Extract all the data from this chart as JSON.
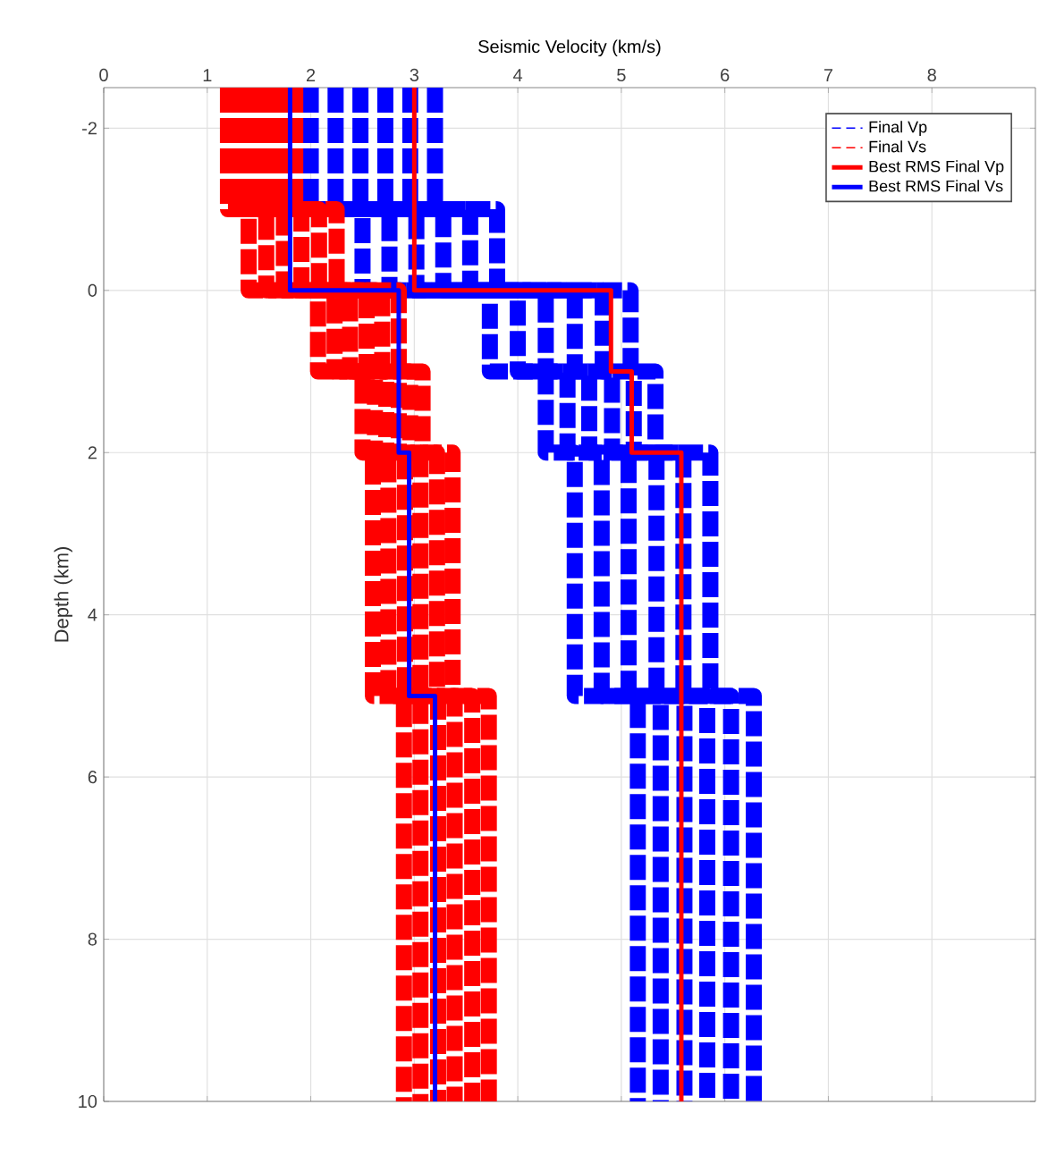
{
  "chart_data": {
    "type": "line",
    "xlabel": "Seismic Velocity (km/s)",
    "ylabel": "Depth (km)",
    "xlim": [
      0,
      9
    ],
    "xticks": [
      0,
      1,
      2,
      3,
      4,
      5,
      6,
      7,
      8
    ],
    "ylim": [
      10,
      -2.5
    ],
    "yticks": [
      -2,
      0,
      2,
      4,
      6,
      8,
      10
    ],
    "grid": true,
    "legend": "top right",
    "marker": "none",
    "series": [
      {
        "name": "Final Vp",
        "color": "#0000ff",
        "line_style": "dashed",
        "x": [
          2.0,
          2.0,
          2.5,
          2.5,
          3.73,
          3.73,
          4.27,
          4.27,
          4.55,
          4.55,
          5.16,
          5.16
        ],
        "values": [
          -2.5,
          -1,
          -1,
          0,
          0,
          1,
          1,
          2,
          2,
          5,
          5,
          10
        ]
      },
      {
        "color": "#0000ff",
        "line_style": "dashed",
        "x": [
          2.24,
          2.24,
          2.76,
          2.76,
          4.0,
          4.0,
          4.48,
          4.48,
          4.81,
          4.81,
          5.38,
          5.38
        ],
        "values": [
          -2.5,
          -1,
          -1,
          0,
          0,
          1,
          1,
          2,
          2,
          5,
          5,
          10
        ]
      },
      {
        "color": "#0000ff",
        "line_style": "dashed",
        "x": [
          2.48,
          2.48,
          3.02,
          3.02,
          4.27,
          4.27,
          4.69,
          4.69,
          5.07,
          5.07,
          5.61,
          5.61
        ],
        "values": [
          -2.5,
          -1,
          -1,
          0,
          0,
          1,
          1,
          2,
          2,
          5,
          5,
          10
        ]
      },
      {
        "color": "#0000ff",
        "line_style": "dashed",
        "x": [
          2.72,
          2.72,
          3.28,
          3.28,
          4.55,
          4.55,
          4.91,
          4.91,
          5.34,
          5.34,
          5.83,
          5.83
        ],
        "values": [
          -2.5,
          -1,
          -1,
          0,
          0,
          1,
          1,
          2,
          2,
          5,
          5,
          10
        ]
      },
      {
        "color": "#0000ff",
        "line_style": "dashed",
        "x": [
          2.96,
          2.96,
          3.54,
          3.54,
          4.82,
          4.82,
          5.12,
          5.12,
          5.6,
          5.6,
          6.06,
          6.06
        ],
        "values": [
          -2.5,
          -1,
          -1,
          0,
          0,
          1,
          1,
          2,
          2,
          5,
          5,
          10
        ]
      },
      {
        "color": "#0000ff",
        "line_style": "dashed",
        "x": [
          3.2,
          3.2,
          3.8,
          3.8,
          5.09,
          5.09,
          5.33,
          5.33,
          5.86,
          5.86,
          6.28,
          6.28
        ],
        "values": [
          -2.5,
          -1,
          -1,
          0,
          0,
          1,
          1,
          2,
          2,
          5,
          5,
          10
        ]
      },
      {
        "name": "Final Vs",
        "color": "#ff0000",
        "line_style": "dashed",
        "x": [
          1.2,
          1.2,
          1.4,
          1.4,
          2.07,
          2.07,
          2.5,
          2.5,
          2.6,
          2.6,
          2.9,
          2.9
        ],
        "values": [
          -2.5,
          -1,
          -1,
          0,
          0,
          1,
          1,
          2,
          2,
          5,
          5,
          10
        ]
      },
      {
        "color": "#ff0000",
        "line_style": "dashed",
        "x": [
          1.33,
          1.33,
          1.57,
          1.57,
          2.23,
          2.23,
          2.62,
          2.62,
          2.75,
          2.75,
          3.06,
          3.06
        ],
        "values": [
          -2.5,
          -1,
          -1,
          0,
          0,
          1,
          1,
          2,
          2,
          5,
          5,
          10
        ]
      },
      {
        "color": "#ff0000",
        "line_style": "dashed",
        "x": [
          1.46,
          1.46,
          1.74,
          1.74,
          2.38,
          2.38,
          2.73,
          2.73,
          2.91,
          2.91,
          3.23,
          3.23
        ],
        "values": [
          -2.5,
          -1,
          -1,
          0,
          0,
          1,
          1,
          2,
          2,
          5,
          5,
          10
        ]
      },
      {
        "color": "#ff0000",
        "line_style": "dashed",
        "x": [
          1.59,
          1.59,
          1.91,
          1.91,
          2.54,
          2.54,
          2.85,
          2.85,
          3.06,
          3.06,
          3.39,
          3.39
        ],
        "values": [
          -2.5,
          -1,
          -1,
          0,
          0,
          1,
          1,
          2,
          2,
          5,
          5,
          10
        ]
      },
      {
        "color": "#ff0000",
        "line_style": "dashed",
        "x": [
          1.72,
          1.72,
          2.08,
          2.08,
          2.69,
          2.69,
          2.96,
          2.96,
          3.22,
          3.22,
          3.56,
          3.56
        ],
        "values": [
          -2.5,
          -1,
          -1,
          0,
          0,
          1,
          1,
          2,
          2,
          5,
          5,
          10
        ]
      },
      {
        "color": "#ff0000",
        "line_style": "dashed",
        "x": [
          1.85,
          1.85,
          2.25,
          2.25,
          2.85,
          2.85,
          3.08,
          3.08,
          3.37,
          3.37,
          3.72,
          3.72
        ],
        "values": [
          -2.5,
          -1,
          -1,
          0,
          0,
          1,
          1,
          2,
          2,
          5,
          5,
          10
        ]
      },
      {
        "name": "Best RMS Final Vp",
        "color": "#ff0000",
        "line_style": "solid",
        "x": [
          3.0,
          3.0,
          4.9,
          4.9,
          5.1,
          5.1,
          5.58,
          5.58
        ],
        "values": [
          -2.5,
          0,
          0,
          1,
          1,
          2,
          2,
          10
        ]
      },
      {
        "name": "Best RMS Final Vs",
        "color": "#0000ff",
        "line_style": "solid",
        "x": [
          1.8,
          1.8,
          2.85,
          2.85,
          2.95,
          2.95,
          3.2,
          3.2
        ],
        "values": [
          -2.5,
          0,
          0,
          2,
          2,
          5,
          5,
          10
        ]
      }
    ]
  }
}
